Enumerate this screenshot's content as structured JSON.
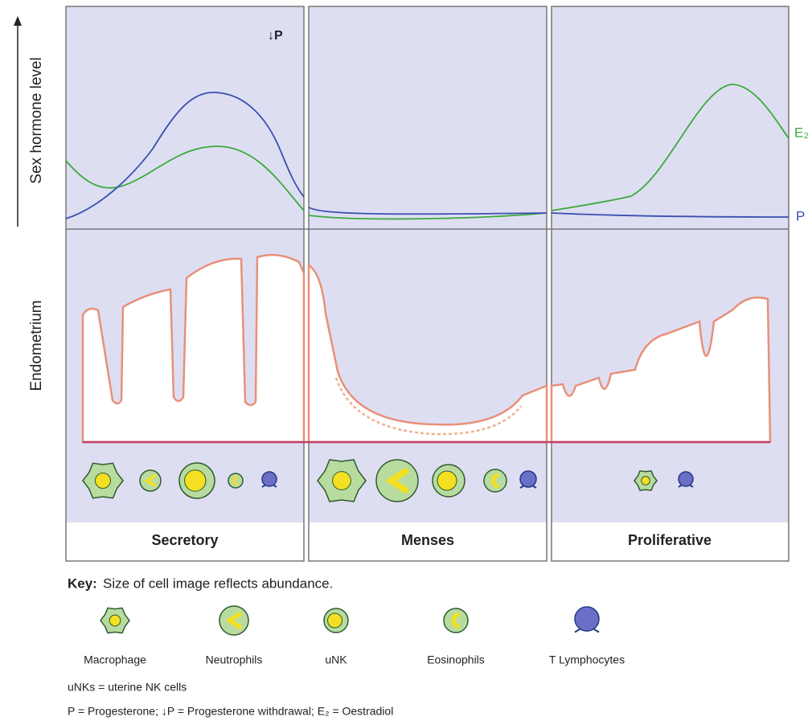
{
  "axes": {
    "hormone": "Sex hormone level",
    "tissue": "Endometrium"
  },
  "annotations": {
    "withdrawal": "↓P",
    "e2": "E₂",
    "p": "P"
  },
  "phases": [
    "Secretory",
    "Menses",
    "Proliferative"
  ],
  "key": {
    "title": "Key:",
    "text": "Size of cell image reflects abundance."
  },
  "legend": [
    "Macrophage",
    "Neutrophils",
    "uNK",
    "Eosinophils",
    "T Lymphocytes"
  ],
  "notes": [
    "uNKs = uterine NK cells",
    "P = Progesterone; ↓P = Progesterone withdrawal; E₂ = Oestradiol"
  ]
}
